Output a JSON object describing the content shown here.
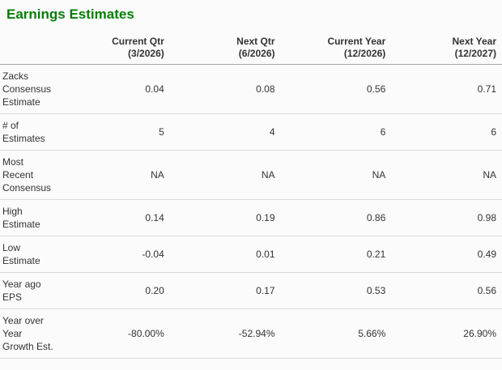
{
  "colors": {
    "title_green": "#087c08",
    "header_rule": "#a6a6a6",
    "row_rule": "#d9d9d9",
    "text": "#333333",
    "background": "#fbfbfb"
  },
  "title": {
    "text": "Earnings Estimates"
  },
  "table": {
    "columns": [
      {
        "line1": "Current Qtr",
        "line2": "(3/2026)"
      },
      {
        "line1": "Next Qtr",
        "line2": "(6/2026)"
      },
      {
        "line1": "Current Year",
        "line2": "(12/2026)"
      },
      {
        "line1": "Next Year",
        "line2": "(12/2027)"
      }
    ],
    "rows": [
      {
        "label": "Zacks Consensus Estimate",
        "values": [
          "0.04",
          "0.08",
          "0.56",
          "0.71"
        ]
      },
      {
        "label": "# of Estimates",
        "values": [
          "5",
          "4",
          "6",
          "6"
        ]
      },
      {
        "label": "Most Recent Consensus",
        "values": [
          "NA",
          "NA",
          "NA",
          "NA"
        ]
      },
      {
        "label": "High Estimate",
        "values": [
          "0.14",
          "0.19",
          "0.86",
          "0.98"
        ]
      },
      {
        "label": "Low Estimate",
        "values": [
          "-0.04",
          "0.01",
          "0.21",
          "0.49"
        ]
      },
      {
        "label": "Year ago EPS",
        "values": [
          "0.20",
          "0.17",
          "0.53",
          "0.56"
        ]
      },
      {
        "label": "Year over Year Growth Est.",
        "values": [
          "-80.00%",
          "-52.94%",
          "5.66%",
          "26.90%"
        ]
      }
    ]
  }
}
